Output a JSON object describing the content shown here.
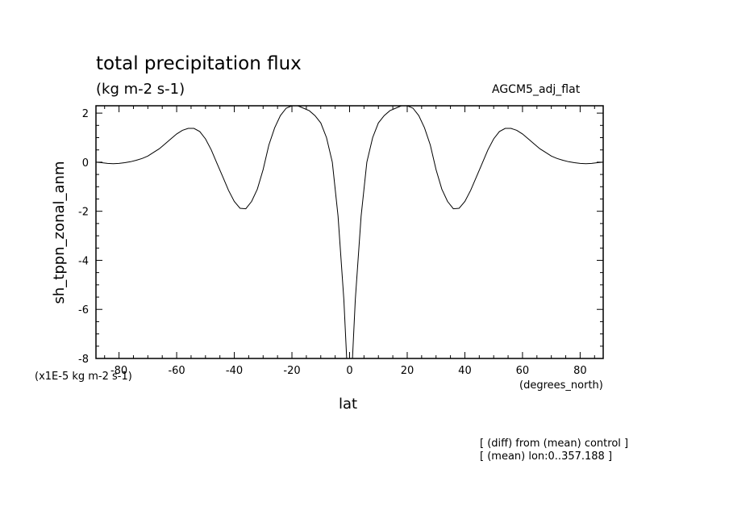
{
  "chart_data": {
    "type": "line",
    "title": "total precipitation flux",
    "subtitle": "(kg m-2 s-1)",
    "model_label": "AGCM5_adj_flat",
    "xlabel": "lat",
    "ylabel": "sh_tppn_zonal_anm",
    "y_units_label": "(x1E-5 kg m-2 s-1)",
    "x_units_label": "(degrees_north)",
    "notes": [
      "[ (diff) from (mean) control ]",
      "[ (mean) lon:0..357.188 ]"
    ],
    "xlim": [
      -88,
      88
    ],
    "ylim": [
      -8,
      2.3
    ],
    "x_ticks": [
      -80,
      -60,
      -40,
      -20,
      0,
      20,
      40,
      60,
      80
    ],
    "x_tick_labels": [
      "-80",
      "-60",
      "-40",
      "-20",
      "0",
      "20",
      "40",
      "60",
      "80"
    ],
    "y_ticks": [
      -8,
      -6,
      -4,
      -2,
      0,
      2
    ],
    "y_tick_labels": [
      "-8",
      "-6",
      "-4",
      "-2",
      "0",
      "2"
    ],
    "grid": false,
    "series": [
      {
        "x": [
          -88,
          -86,
          -84,
          -82,
          -80,
          -78,
          -76,
          -74,
          -72,
          -70,
          -68,
          -66,
          -64,
          -62,
          -60,
          -58,
          -56,
          -54,
          -52,
          -50,
          -48,
          -46,
          -44,
          -42,
          -40,
          -38,
          -36,
          -34,
          -32,
          -30,
          -28,
          -26,
          -24,
          -22,
          -20,
          -18,
          -16,
          -14,
          -12,
          -10,
          -8,
          -6,
          -4,
          -2,
          -1,
          1,
          2,
          4,
          6,
          8,
          10,
          12,
          14,
          16,
          18,
          20,
          22,
          24,
          26,
          28,
          30,
          32,
          34,
          36,
          38,
          40,
          42,
          44,
          46,
          48,
          50,
          52,
          54,
          56,
          58,
          60,
          62,
          64,
          66,
          68,
          70,
          72,
          74,
          76,
          78,
          80,
          82,
          84,
          86,
          88
        ],
        "values": [
          0.0,
          -0.02,
          -0.05,
          -0.06,
          -0.05,
          -0.02,
          0.02,
          0.08,
          0.15,
          0.25,
          0.4,
          0.55,
          0.75,
          0.95,
          1.15,
          1.3,
          1.38,
          1.38,
          1.25,
          0.95,
          0.5,
          -0.05,
          -0.6,
          -1.15,
          -1.6,
          -1.88,
          -1.9,
          -1.6,
          -1.1,
          -0.3,
          0.7,
          1.4,
          1.9,
          2.2,
          2.3,
          2.3,
          2.2,
          2.1,
          1.9,
          1.6,
          1.0,
          0.0,
          -2.2,
          -5.6,
          -8.0,
          -8.0,
          -5.6,
          -2.2,
          0.0,
          1.0,
          1.6,
          1.9,
          2.1,
          2.2,
          2.3,
          2.3,
          2.2,
          1.9,
          1.4,
          0.7,
          -0.3,
          -1.1,
          -1.6,
          -1.9,
          -1.88,
          -1.6,
          -1.15,
          -0.6,
          -0.05,
          0.5,
          0.95,
          1.25,
          1.38,
          1.38,
          1.3,
          1.15,
          0.95,
          0.75,
          0.55,
          0.4,
          0.25,
          0.15,
          0.08,
          0.02,
          -0.02,
          -0.05,
          -0.06,
          -0.05,
          -0.02,
          0.0
        ]
      }
    ]
  }
}
